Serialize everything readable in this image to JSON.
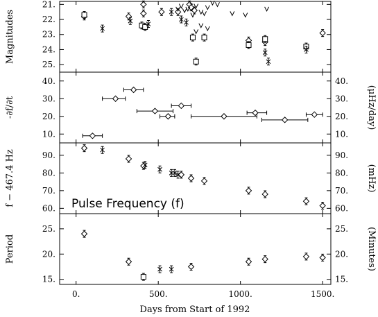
{
  "chart_data": [
    {
      "type": "scatter",
      "ylabel": "Magnitudes",
      "ylim": [
        25.5,
        20.8
      ],
      "yticks": [
        "21.",
        "22.",
        "23.",
        "24.",
        "25."
      ],
      "series": [
        {
          "marker": "diamond",
          "points": [
            [
              50,
              21.8
            ],
            [
              320,
              21.8
            ],
            [
              410,
              21.0
            ],
            [
              410,
              21.6
            ],
            [
              520,
              21.5
            ],
            [
              620,
              21.5
            ],
            [
              690,
              21.0
            ],
            [
              700,
              21.2
            ],
            [
              720,
              21.4
            ],
            [
              1050,
              23.4
            ],
            [
              1150,
              23.5
            ],
            [
              1500,
              22.9
            ]
          ]
        },
        {
          "marker": "square",
          "points": [
            [
              50,
              21.7
            ],
            [
              400,
              22.4
            ],
            [
              420,
              22.5
            ],
            [
              710,
              23.2
            ],
            [
              730,
              24.8
            ],
            [
              780,
              23.2
            ],
            [
              1050,
              23.7
            ],
            [
              1150,
              23.3
            ],
            [
              1400,
              23.8
            ]
          ]
        },
        {
          "marker": "x",
          "points": [
            [
              160,
              22.6
            ],
            [
              330,
              22.1
            ],
            [
              440,
              22.3
            ],
            [
              580,
              21.5
            ],
            [
              640,
              22.0
            ],
            [
              670,
              22.2
            ],
            [
              1150,
              24.2
            ],
            [
              1170,
              24.8
            ],
            [
              1400,
              24.0
            ]
          ]
        },
        {
          "marker": "v",
          "points": [
            [
              620,
              21.3
            ],
            [
              640,
              21.1
            ],
            [
              660,
              21.4
            ],
            [
              680,
              21.3
            ],
            [
              710,
              21.7
            ],
            [
              730,
              21.1
            ],
            [
              760,
              21.5
            ],
            [
              780,
              21.6
            ],
            [
              800,
              21.2
            ],
            [
              830,
              20.9
            ],
            [
              860,
              21.0
            ],
            [
              950,
              21.6
            ],
            [
              1030,
              21.7
            ],
            [
              1160,
              21.3
            ],
            [
              760,
              22.4
            ],
            [
              800,
              22.6
            ],
            [
              730,
              22.8
            ]
          ]
        }
      ]
    },
    {
      "type": "scatter",
      "ylabel": "-∂f/∂t",
      "ylabel_right": "(μHz/day)",
      "ylim": [
        5,
        45
      ],
      "yticks": [
        "10.",
        "20.",
        "30.",
        "40."
      ],
      "points": [
        [
          100,
          9
        ],
        [
          240,
          30
        ],
        [
          350,
          35
        ],
        [
          480,
          23
        ],
        [
          560,
          20
        ],
        [
          640,
          26
        ],
        [
          900,
          20
        ],
        [
          1090,
          22
        ],
        [
          1270,
          18
        ],
        [
          1450,
          21
        ]
      ],
      "xerr": [
        [
          40,
          160
        ],
        [
          160,
          300
        ],
        [
          290,
          410
        ],
        [
          370,
          590
        ],
        [
          510,
          600
        ],
        [
          580,
          700
        ],
        [
          700,
          1100
        ],
        [
          1040,
          1160
        ],
        [
          1130,
          1410
        ],
        [
          1400,
          1500
        ]
      ]
    },
    {
      "type": "scatter",
      "ylabel": "f − 467.4 Hz",
      "ylabel_right": "(mHz)",
      "annotation": "Pulse Frequency (f)",
      "ylim": [
        57,
        97
      ],
      "yticks": [
        "60.",
        "70.",
        "80.",
        "90."
      ],
      "series": [
        {
          "marker": "diamond",
          "points": [
            [
              50,
              94
            ],
            [
              320,
              88
            ],
            [
              410,
              84
            ],
            [
              640,
              79
            ],
            [
              700,
              77
            ],
            [
              780,
              75.5
            ],
            [
              1050,
              70
            ],
            [
              1150,
              68
            ],
            [
              1400,
              64
            ],
            [
              1500,
              61.5
            ]
          ]
        },
        {
          "marker": "x",
          "points": [
            [
              160,
              93
            ],
            [
              420,
              84.5
            ],
            [
              510,
              82
            ],
            [
              580,
              80
            ],
            [
              600,
              80
            ],
            [
              620,
              79
            ]
          ]
        }
      ]
    },
    {
      "type": "scatter",
      "ylabel": "Period",
      "ylabel_right": "(Minutes)",
      "ylim": [
        14,
        28
      ],
      "yticks": [
        "15.",
        "20.",
        "25."
      ],
      "series": [
        {
          "marker": "diamond",
          "points": [
            [
              50,
              24
            ],
            [
              320,
              18.5
            ],
            [
              700,
              17.5
            ],
            [
              1050,
              18.5
            ],
            [
              1150,
              19
            ],
            [
              1400,
              19.5
            ],
            [
              1500,
              19.3
            ]
          ]
        },
        {
          "marker": "square",
          "points": [
            [
              410,
              15.5
            ]
          ]
        },
        {
          "marker": "x",
          "points": [
            [
              510,
              17
            ],
            [
              580,
              17
            ]
          ]
        }
      ]
    }
  ],
  "x_axis": {
    "label": "Days from Start of 1992",
    "xlim": [
      -100,
      1550
    ],
    "ticks": [
      {
        "v": 0,
        "t": "0."
      },
      {
        "v": 500,
        "t": "500."
      },
      {
        "v": 1000,
        "t": "1000."
      },
      {
        "v": 1500,
        "t": "1500."
      }
    ]
  }
}
